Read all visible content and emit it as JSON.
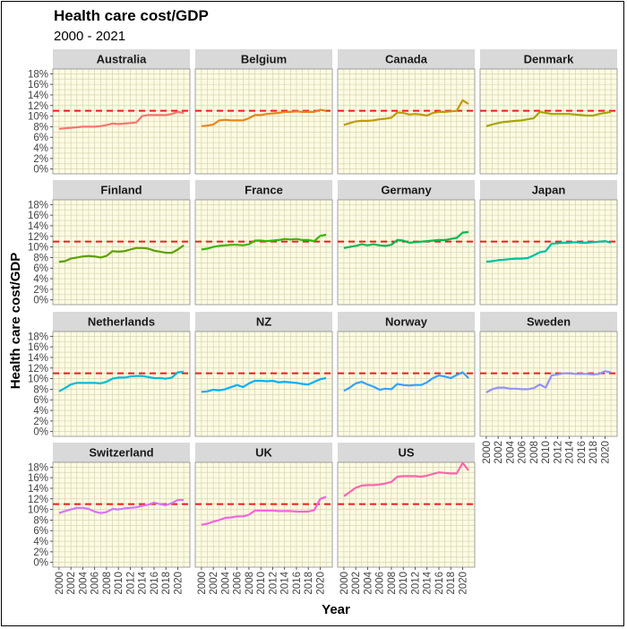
{
  "title": "Health care cost/GDP",
  "subtitle": "2000 - 2021",
  "chart_data": {
    "type": "line",
    "layout": "facet-grid",
    "title": "Health care cost/GDP",
    "subtitle": "2000 - 2021",
    "xlabel": "Year",
    "ylabel": "Health care cost/GDP",
    "xlim": [
      2000,
      2021
    ],
    "ylim": [
      0,
      18
    ],
    "y_tick_values": [
      0,
      2,
      4,
      6,
      8,
      10,
      12,
      14,
      16,
      18
    ],
    "y_tick_labels": [
      "0%",
      "2%",
      "4%",
      "6%",
      "8%",
      "10%",
      "12%",
      "14%",
      "16%",
      "18%"
    ],
    "x_tick_values": [
      2000,
      2002,
      2004,
      2006,
      2008,
      2010,
      2012,
      2014,
      2016,
      2018,
      2020
    ],
    "x_tick_labels": [
      "2000",
      "2002",
      "2004",
      "2006",
      "2008",
      "2010",
      "2012",
      "2014",
      "2016",
      "2018",
      "2020"
    ],
    "reference_line": {
      "y": 11,
      "style": "dashed",
      "color": "#ee1c1c"
    },
    "grid": true,
    "panel_background": "#fdfbe3",
    "grid_color": "#cfcfa9",
    "strip_background": "#d9d9d9",
    "legend": "none",
    "x": [
      2000,
      2001,
      2002,
      2003,
      2004,
      2005,
      2006,
      2007,
      2008,
      2009,
      2010,
      2011,
      2012,
      2013,
      2014,
      2015,
      2016,
      2017,
      2018,
      2019,
      2020,
      2021
    ],
    "series": [
      {
        "name": "Australia",
        "color": "#f8766d",
        "values": [
          7.6,
          7.7,
          7.8,
          7.9,
          8.0,
          8.0,
          8.0,
          8.1,
          8.3,
          8.6,
          8.5,
          8.6,
          8.7,
          8.8,
          10.0,
          10.2,
          10.2,
          10.2,
          10.2,
          10.4,
          10.8,
          10.6
        ]
      },
      {
        "name": "Belgium",
        "color": "#e7861b",
        "values": [
          8.1,
          8.2,
          8.4,
          9.2,
          9.3,
          9.2,
          9.2,
          9.2,
          9.6,
          10.2,
          10.2,
          10.4,
          10.5,
          10.6,
          10.8,
          10.8,
          10.9,
          10.8,
          10.8,
          10.8,
          11.2,
          11.0
        ]
      },
      {
        "name": "Canada",
        "color": "#c09b00",
        "values": [
          8.3,
          8.7,
          9.0,
          9.1,
          9.1,
          9.2,
          9.4,
          9.5,
          9.7,
          10.7,
          10.6,
          10.3,
          10.4,
          10.3,
          10.1,
          10.6,
          10.8,
          10.8,
          10.9,
          11.0,
          13.0,
          12.3
        ]
      },
      {
        "name": "Denmark",
        "color": "#a3a500",
        "values": [
          8.1,
          8.4,
          8.7,
          8.9,
          9.0,
          9.1,
          9.2,
          9.4,
          9.6,
          10.8,
          10.6,
          10.4,
          10.4,
          10.4,
          10.4,
          10.3,
          10.2,
          10.1,
          10.1,
          10.4,
          10.6,
          10.8
        ]
      },
      {
        "name": "Finland",
        "color": "#5da000",
        "values": [
          7.2,
          7.3,
          7.8,
          8.0,
          8.2,
          8.3,
          8.2,
          8.0,
          8.3,
          9.2,
          9.1,
          9.2,
          9.5,
          9.8,
          9.8,
          9.7,
          9.3,
          9.1,
          8.9,
          8.9,
          9.5,
          10.3
        ]
      },
      {
        "name": "France",
        "color": "#39b600",
        "values": [
          9.5,
          9.7,
          10.0,
          10.2,
          10.3,
          10.4,
          10.4,
          10.3,
          10.5,
          11.2,
          11.2,
          11.1,
          11.2,
          11.3,
          11.5,
          11.4,
          11.5,
          11.3,
          11.3,
          11.1,
          12.1,
          12.3
        ]
      },
      {
        "name": "Germany",
        "color": "#00bb4e",
        "values": [
          9.8,
          10.0,
          10.2,
          10.5,
          10.3,
          10.5,
          10.3,
          10.2,
          10.4,
          11.3,
          11.2,
          10.8,
          10.9,
          11.0,
          11.1,
          11.2,
          11.3,
          11.3,
          11.5,
          11.7,
          12.7,
          12.8
        ]
      },
      {
        "name": "Japan",
        "color": "#00bfa0",
        "values": [
          7.2,
          7.3,
          7.5,
          7.6,
          7.7,
          7.8,
          7.8,
          7.9,
          8.4,
          9.0,
          9.2,
          10.6,
          10.7,
          10.8,
          10.8,
          10.9,
          10.8,
          10.8,
          10.9,
          11.0,
          11.1,
          10.8
        ]
      },
      {
        "name": "Netherlands",
        "color": "#00bcd8",
        "values": [
          7.6,
          8.2,
          8.9,
          9.2,
          9.2,
          9.2,
          9.2,
          9.1,
          9.4,
          10.0,
          10.2,
          10.2,
          10.4,
          10.5,
          10.5,
          10.3,
          10.1,
          10.1,
          10.0,
          10.2,
          11.2,
          11.3
        ]
      },
      {
        "name": "NZ",
        "color": "#00b0f6",
        "values": [
          7.5,
          7.6,
          7.9,
          7.8,
          8.0,
          8.4,
          8.8,
          8.4,
          9.1,
          9.6,
          9.6,
          9.5,
          9.6,
          9.3,
          9.4,
          9.3,
          9.2,
          9.0,
          8.9,
          9.4,
          9.9,
          10.1
        ]
      },
      {
        "name": "Norway",
        "color": "#35a2ff",
        "values": [
          7.7,
          8.3,
          9.1,
          9.4,
          8.9,
          8.5,
          7.9,
          8.1,
          8.0,
          9.0,
          8.8,
          8.7,
          8.8,
          8.8,
          9.3,
          10.1,
          10.6,
          10.4,
          10.1,
          10.7,
          11.2,
          10.1
        ]
      },
      {
        "name": "Sweden",
        "color": "#9590ff",
        "values": [
          7.4,
          8.0,
          8.3,
          8.3,
          8.1,
          8.1,
          8.0,
          8.0,
          8.2,
          8.9,
          8.3,
          10.6,
          10.8,
          11.0,
          11.0,
          10.9,
          10.9,
          10.9,
          10.8,
          10.9,
          11.4,
          11.2
        ]
      },
      {
        "name": "Switzerland",
        "color": "#d575fe",
        "values": [
          9.3,
          9.7,
          10.0,
          10.3,
          10.3,
          10.1,
          9.6,
          9.3,
          9.5,
          10.1,
          10.0,
          10.2,
          10.3,
          10.4,
          10.7,
          10.9,
          11.3,
          11.0,
          10.8,
          11.2,
          11.8,
          11.8
        ]
      },
      {
        "name": "UK",
        "color": "#f962dd",
        "values": [
          7.1,
          7.3,
          7.7,
          8.0,
          8.4,
          8.5,
          8.7,
          8.7,
          9.0,
          9.8,
          9.8,
          9.8,
          9.8,
          9.7,
          9.7,
          9.7,
          9.6,
          9.6,
          9.6,
          9.9,
          12.0,
          12.4
        ]
      },
      {
        "name": "US",
        "color": "#ff65ac",
        "values": [
          12.5,
          13.3,
          14.1,
          14.5,
          14.6,
          14.6,
          14.7,
          14.9,
          15.2,
          16.2,
          16.3,
          16.3,
          16.3,
          16.2,
          16.4,
          16.7,
          17.0,
          16.9,
          16.8,
          16.8,
          18.8,
          17.4
        ]
      }
    ]
  }
}
